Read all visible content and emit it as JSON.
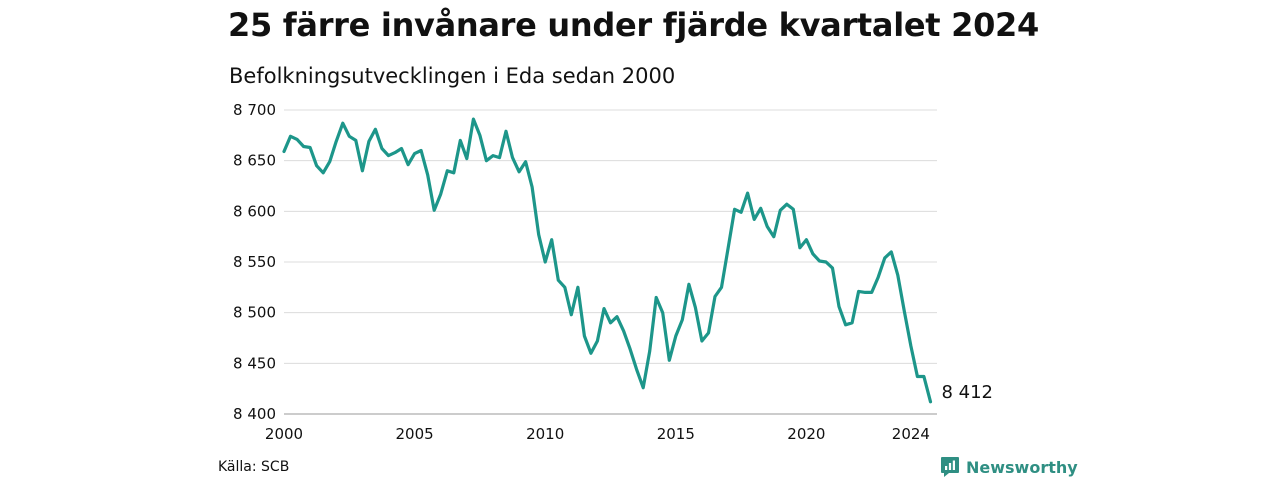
{
  "title": "25 färre invånare under fjärde kvartalet 2024",
  "subtitle": "Befolkningsutvecklingen i Eda sedan 2000",
  "source": "Källa: SCB",
  "brand": {
    "name": "Newsworthy",
    "icon": "newsworthy-logo-icon",
    "color": "#2f8f83"
  },
  "chart_data": {
    "type": "line",
    "title": "25 färre invånare under fjärde kvartalet 2024",
    "subtitle": "Befolkningsutvecklingen i Eda sedan 2000",
    "xlabel": "",
    "ylabel": "",
    "xlim": [
      2000,
      2025
    ],
    "ylim": [
      8400,
      8700
    ],
    "grid": "horizontal",
    "legend": "none",
    "line_color": "#1d968a",
    "x_ticks": [
      2000,
      2005,
      2010,
      2015,
      2020,
      2024
    ],
    "x_tick_labels": [
      "2000",
      "2005",
      "2010",
      "2015",
      "2020",
      "2024"
    ],
    "y_ticks": [
      8400,
      8450,
      8500,
      8550,
      8600,
      8650,
      8700
    ],
    "y_tick_labels": [
      "8 400",
      "8 450",
      "8 500",
      "8 550",
      "8 600",
      "8 650",
      "8 700"
    ],
    "end_label": "8 412",
    "series": [
      {
        "x": [
          2000.0,
          2000.25,
          2000.5,
          2000.75,
          2001.0,
          2001.25,
          2001.5,
          2001.75,
          2002.0,
          2002.25,
          2002.5,
          2002.75,
          2003.0,
          2003.25,
          2003.5,
          2003.75,
          2004.0,
          2004.25,
          2004.5,
          2004.75,
          2005.0,
          2005.25,
          2005.5,
          2005.75,
          2006.0,
          2006.25,
          2006.5,
          2006.75,
          2007.0,
          2007.25,
          2007.5,
          2007.75,
          2008.0,
          2008.25,
          2008.5,
          2008.75,
          2009.0,
          2009.25,
          2009.5,
          2009.75,
          2010.0,
          2010.25,
          2010.5,
          2010.75,
          2011.0,
          2011.25,
          2011.5,
          2011.75,
          2012.0,
          2012.25,
          2012.5,
          2012.75,
          2013.0,
          2013.25,
          2013.5,
          2013.75,
          2014.0,
          2014.25,
          2014.5,
          2014.75,
          2015.0,
          2015.25,
          2015.5,
          2015.75,
          2016.0,
          2016.25,
          2016.5,
          2016.75,
          2017.0,
          2017.25,
          2017.5,
          2017.75,
          2018.0,
          2018.25,
          2018.5,
          2018.75,
          2019.0,
          2019.25,
          2019.5,
          2019.75,
          2020.0,
          2020.25,
          2020.5,
          2020.75,
          2021.0,
          2021.25,
          2021.5,
          2021.75,
          2022.0,
          2022.25,
          2022.5,
          2022.75,
          2023.0,
          2023.25,
          2023.5,
          2023.75,
          2024.0,
          2024.25,
          2024.5,
          2024.75
        ],
        "values": [
          8659,
          8674,
          8671,
          8664,
          8663,
          8645,
          8638,
          8649,
          8669,
          8687,
          8674,
          8670,
          8640,
          8669,
          8681,
          8662,
          8655,
          8658,
          8662,
          8646,
          8657,
          8660,
          8636,
          8601,
          8617,
          8640,
          8638,
          8670,
          8652,
          8691,
          8675,
          8650,
          8655,
          8653,
          8679,
          8653,
          8639,
          8649,
          8624,
          8577,
          8550,
          8572,
          8532,
          8525,
          8498,
          8525,
          8477,
          8460,
          8472,
          8504,
          8490,
          8496,
          8482,
          8464,
          8444,
          8426,
          8462,
          8515,
          8500,
          8453,
          8477,
          8493,
          8528,
          8505,
          8472,
          8480,
          8516,
          8525,
          8563,
          8602,
          8599,
          8618,
          8592,
          8603,
          8585,
          8575,
          8601,
          8607,
          8602,
          8564,
          8572,
          8558,
          8551,
          8550,
          8544,
          8506,
          8488,
          8490,
          8521,
          8520,
          8520,
          8535,
          8554,
          8560,
          8537,
          8501,
          8467,
          8437,
          8437,
          8412
        ]
      }
    ]
  }
}
